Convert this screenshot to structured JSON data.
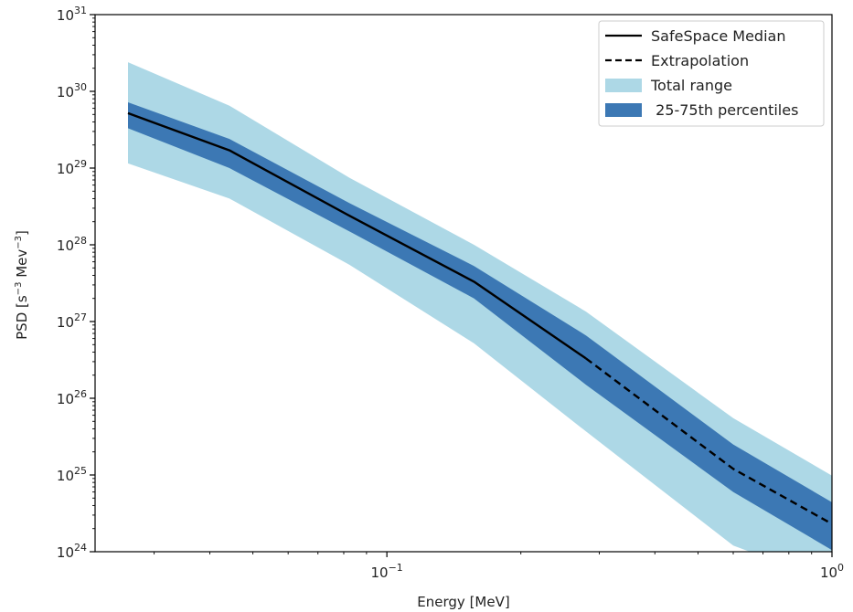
{
  "chart_data": {
    "type": "area",
    "xlabel": "Energy [MeV]",
    "ylabel_parts": {
      "base": "PSD [s",
      "exp1": "−3",
      "mid": " Mev",
      "exp2": "−3",
      "end": "]"
    },
    "x_scale": "log",
    "y_scale": "log",
    "xlim": [
      0.0221,
      1.0
    ],
    "ylim": [
      1e+24,
      1e+31
    ],
    "x_ticks": [
      {
        "value": 0.1,
        "base": "10",
        "exp": "−1"
      },
      {
        "value": 1.0,
        "base": "10",
        "exp": "0"
      }
    ],
    "y_ticks": [
      {
        "value": 1e+24,
        "base": "10",
        "exp": "24"
      },
      {
        "value": 1e+25,
        "base": "10",
        "exp": "25"
      },
      {
        "value": 1e+26,
        "base": "10",
        "exp": "26"
      },
      {
        "value": 1e+27,
        "base": "10",
        "exp": "27"
      },
      {
        "value": 1e+28,
        "base": "10",
        "exp": "28"
      },
      {
        "value": 1e+29,
        "base": "10",
        "exp": "29"
      },
      {
        "value": 1e+30,
        "base": "10",
        "exp": "30"
      },
      {
        "value": 1e+31,
        "base": "10",
        "exp": "31"
      }
    ],
    "grid": false,
    "legend_position": "top-right",
    "series": [
      {
        "name": "Total range",
        "kind": "band",
        "color": "#add8e6",
        "x": [
          0.0262,
          0.0443,
          0.0823,
          0.157,
          0.28,
          0.6,
          1.0
        ],
        "y_low": [
          1.15e+29,
          4e+28,
          5.5e+27,
          5.2e+26,
          3.7e+25,
          1.2e+24,
          4e+23
        ],
        "y_high": [
          2.4e+30,
          6.5e+29,
          7.5e+28,
          1e+28,
          1.35e+27,
          5.5e+25,
          9.8e+24
        ]
      },
      {
        "name": " 25-75th percentiles",
        "kind": "band",
        "color": "#3c78b4",
        "x": [
          0.0262,
          0.0443,
          0.0823,
          0.157,
          0.28,
          0.6,
          1.0
        ],
        "y_low": [
          3.3e+29,
          1e+29,
          1.5e+28,
          2e+27,
          1.5e+26,
          6e+24,
          1.05e+24
        ],
        "y_high": [
          7.2e+29,
          2.4e+29,
          3.5e+28,
          5.3e+27,
          6.6e+26,
          2.5e+25,
          4.4e+24
        ]
      },
      {
        "name": "SafeSpace Median",
        "kind": "line",
        "dash": "solid",
        "color": "#000000",
        "x": [
          0.0262,
          0.0443,
          0.0823,
          0.157,
          0.28
        ],
        "y": [
          5.2e+29,
          1.7e+29,
          2.4e+28,
          3.3e+27,
          3.3e+26
        ]
      },
      {
        "name": "Extrapolation",
        "kind": "line",
        "dash": "dashed",
        "color": "#000000",
        "x": [
          0.28,
          0.6,
          1.0
        ],
        "y": [
          3.3e+26,
          1.2e+25,
          2.3e+24
        ]
      }
    ]
  }
}
